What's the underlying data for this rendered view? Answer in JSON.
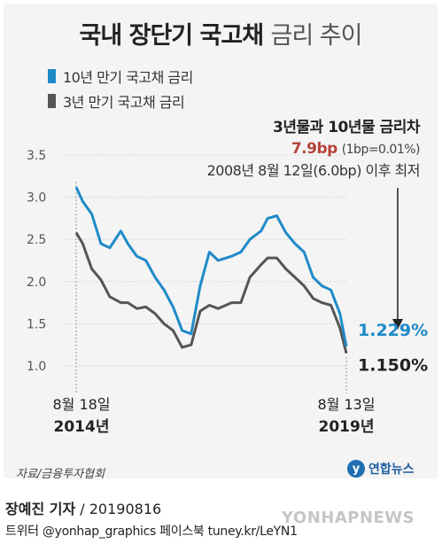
{
  "title_main": "국내 장단기 국고채",
  "title_sub": "금리 추이",
  "legend": [
    {
      "label": "10년 만기 국고채 금리",
      "color": "#1f8ac8"
    },
    {
      "label": "3년 만기 국고채 금리",
      "color": "#555555"
    }
  ],
  "annotation": {
    "title": "3년물과 10년물 금리차",
    "spread": "7.9bp",
    "spread_note": "(1bp=0.01%)",
    "line3": "2008년 8월 12일(6.0bp) 이후 최저"
  },
  "end_labels": {
    "ten_year": "1.229%",
    "three_year": "1.150%"
  },
  "chart_data": {
    "type": "line",
    "ylim": [
      1.0,
      3.5
    ],
    "yticks": [
      "3.5",
      "3.0",
      "2.5",
      "2.0",
      "1.5",
      "1.0"
    ],
    "x_start": {
      "date": "8월 18일",
      "year": "2014년"
    },
    "x_end": {
      "date": "8월 13일",
      "year": "2019년"
    },
    "grid": true,
    "series": [
      {
        "name": "10년 만기 국고채 금리",
        "color": "#1f8ac8",
        "x": [
          "2014-08-18",
          "2014-10-01",
          "2014-12-01",
          "2015-02-01",
          "2015-04-01",
          "2015-06-15",
          "2015-08-01",
          "2015-10-01",
          "2015-12-01",
          "2016-02-01",
          "2016-04-01",
          "2016-06-01",
          "2016-08-01",
          "2016-10-01",
          "2016-12-01",
          "2017-02-01",
          "2017-04-01",
          "2017-07-01",
          "2017-09-01",
          "2017-11-01",
          "2018-01-15",
          "2018-03-01",
          "2018-05-01",
          "2018-07-01",
          "2018-09-01",
          "2018-11-01",
          "2019-01-01",
          "2019-03-01",
          "2019-05-01",
          "2019-07-01",
          "2019-08-13"
        ],
        "values": [
          3.12,
          2.95,
          2.8,
          2.45,
          2.4,
          2.6,
          2.45,
          2.3,
          2.25,
          2.05,
          1.9,
          1.7,
          1.42,
          1.38,
          1.95,
          2.35,
          2.25,
          2.3,
          2.35,
          2.5,
          2.6,
          2.75,
          2.78,
          2.58,
          2.45,
          2.35,
          2.05,
          1.95,
          1.9,
          1.62,
          1.229
        ]
      },
      {
        "name": "3년 만기 국고채 금리",
        "color": "#555555",
        "x": [
          "2014-08-18",
          "2014-10-01",
          "2014-12-01",
          "2015-02-01",
          "2015-04-01",
          "2015-06-15",
          "2015-08-01",
          "2015-10-01",
          "2015-12-01",
          "2016-02-01",
          "2016-04-01",
          "2016-06-01",
          "2016-08-01",
          "2016-10-01",
          "2016-12-01",
          "2017-02-01",
          "2017-04-01",
          "2017-07-01",
          "2017-09-01",
          "2017-11-01",
          "2018-01-15",
          "2018-03-01",
          "2018-05-01",
          "2018-07-01",
          "2018-09-01",
          "2018-11-01",
          "2019-01-01",
          "2019-03-01",
          "2019-05-01",
          "2019-07-01",
          "2019-08-13"
        ],
        "values": [
          2.58,
          2.45,
          2.15,
          2.02,
          1.82,
          1.75,
          1.75,
          1.68,
          1.7,
          1.62,
          1.5,
          1.42,
          1.22,
          1.25,
          1.65,
          1.72,
          1.68,
          1.75,
          1.75,
          2.05,
          2.2,
          2.28,
          2.28,
          2.15,
          2.05,
          1.95,
          1.8,
          1.75,
          1.72,
          1.45,
          1.15
        ]
      }
    ]
  },
  "source": "자료/금융투자협회",
  "logo_text": "연합뉴스",
  "credit_name": "장예진 기자",
  "credit_date": "20190816",
  "social": "트위터 @yonhap_graphics  페이스북 tuney.kr/LeYN1",
  "watermark": "YONHAPNEWS"
}
